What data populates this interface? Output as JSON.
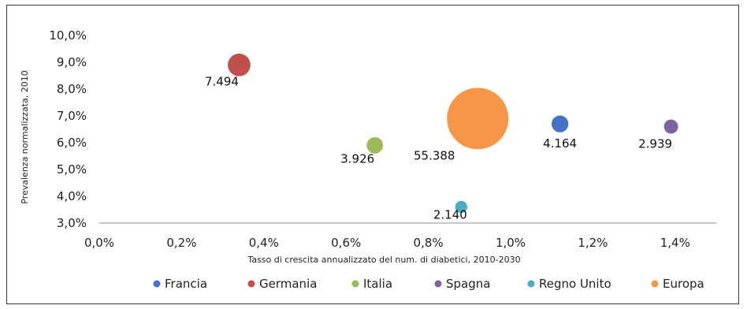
{
  "chart_data": {
    "type": "bubble",
    "title": "",
    "xlabel": "Tasso di crescita annualizzato del num. di diabetici, 2010-2030",
    "ylabel": "Prevalenza  normalizzata, 2010",
    "xlim": [
      0.0,
      1.5
    ],
    "ylim": [
      3.0,
      10.0
    ],
    "x_ticks": [
      "0,0%",
      "0,2%",
      "0,4%",
      "0,6%",
      "0,8%",
      "1,0%",
      "1,2%",
      "1,4%"
    ],
    "y_ticks": [
      "3,0%",
      "4,0%",
      "5,0%",
      "6,0%",
      "7,0%",
      "8,0%",
      "9,0%",
      "10,0%"
    ],
    "grid": false,
    "legend_position": "bottom",
    "series": [
      {
        "name": "Francia",
        "color": "#4472C4",
        "x": 1.12,
        "y": 6.7,
        "size": 4164,
        "label": "4.164"
      },
      {
        "name": "Germania",
        "color": "#C0504D",
        "x": 0.34,
        "y": 8.9,
        "size": 7494,
        "label": "7.494"
      },
      {
        "name": "Italia",
        "color": "#9BBB59",
        "x": 0.67,
        "y": 5.9,
        "size": 3926,
        "label": "3.926"
      },
      {
        "name": "Spagna",
        "color": "#8064A2",
        "x": 1.39,
        "y": 6.6,
        "size": 2939,
        "label": "2.939"
      },
      {
        "name": "Regno Unito",
        "color": "#4BACC6",
        "x": 0.88,
        "y": 3.6,
        "size": 2140,
        "label": "2.140"
      },
      {
        "name": "Europa",
        "color": "#F79646",
        "x": 0.92,
        "y": 6.9,
        "size": 55388,
        "label": "55.388"
      }
    ]
  }
}
